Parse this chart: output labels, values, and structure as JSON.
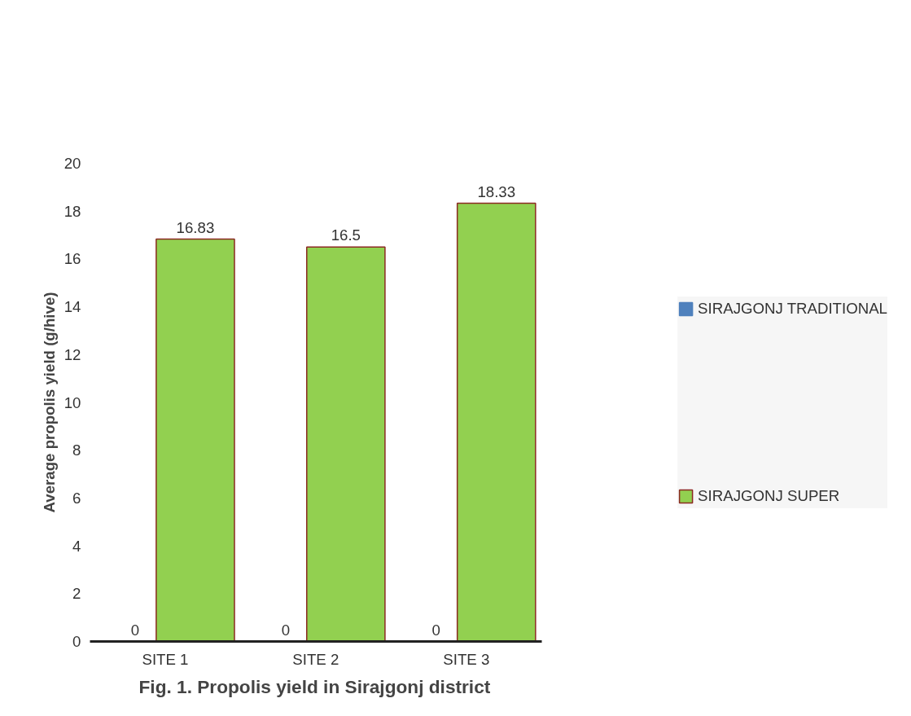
{
  "chart_data": {
    "type": "bar",
    "ylabel": "Average propolis yield (g/hive)",
    "categories": [
      "SITE 1",
      "SITE 2",
      "SITE 3"
    ],
    "series": [
      {
        "name": "SIRAJGONJ TRADITIONAL",
        "color": "#4f81bd",
        "values": [
          0,
          0,
          0
        ]
      },
      {
        "name": "SIRAJGONJ SUPER",
        "color": "#92d050",
        "values": [
          16.83,
          16.5,
          18.33
        ]
      }
    ],
    "ylim": [
      0,
      20
    ],
    "yticks": [
      0,
      2,
      4,
      6,
      8,
      10,
      12,
      14,
      16,
      18,
      20
    ],
    "data_labels": true,
    "legend": "right",
    "grid": false,
    "annotations": [
      "Fig. 1. Propolis yield in Sirajgonj district"
    ]
  }
}
